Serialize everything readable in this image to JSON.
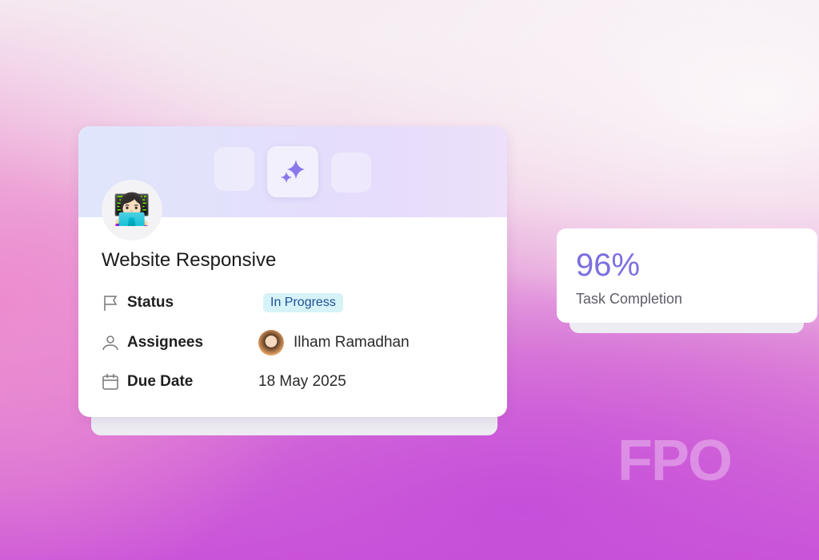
{
  "task_card": {
    "avatar_icon": "woman-technologist-emoji",
    "header_icon": "sparkles-icon",
    "title": "Website Responsive",
    "rows": [
      {
        "icon": "flag-icon",
        "label": "Status",
        "value": "In Progress"
      },
      {
        "icon": "user-icon",
        "label": "Assignees",
        "value": "Ilham Ramadhan"
      },
      {
        "icon": "calendar-icon",
        "label": "Due Date",
        "value": "18 May 2025"
      }
    ],
    "colors": {
      "badge_bg": "#d6f3f7",
      "badge_text": "#1f4f9a",
      "accent": "#7b6fe0"
    }
  },
  "stat_card": {
    "value": "96%",
    "label": "Task Completion"
  },
  "watermark": "FPO"
}
